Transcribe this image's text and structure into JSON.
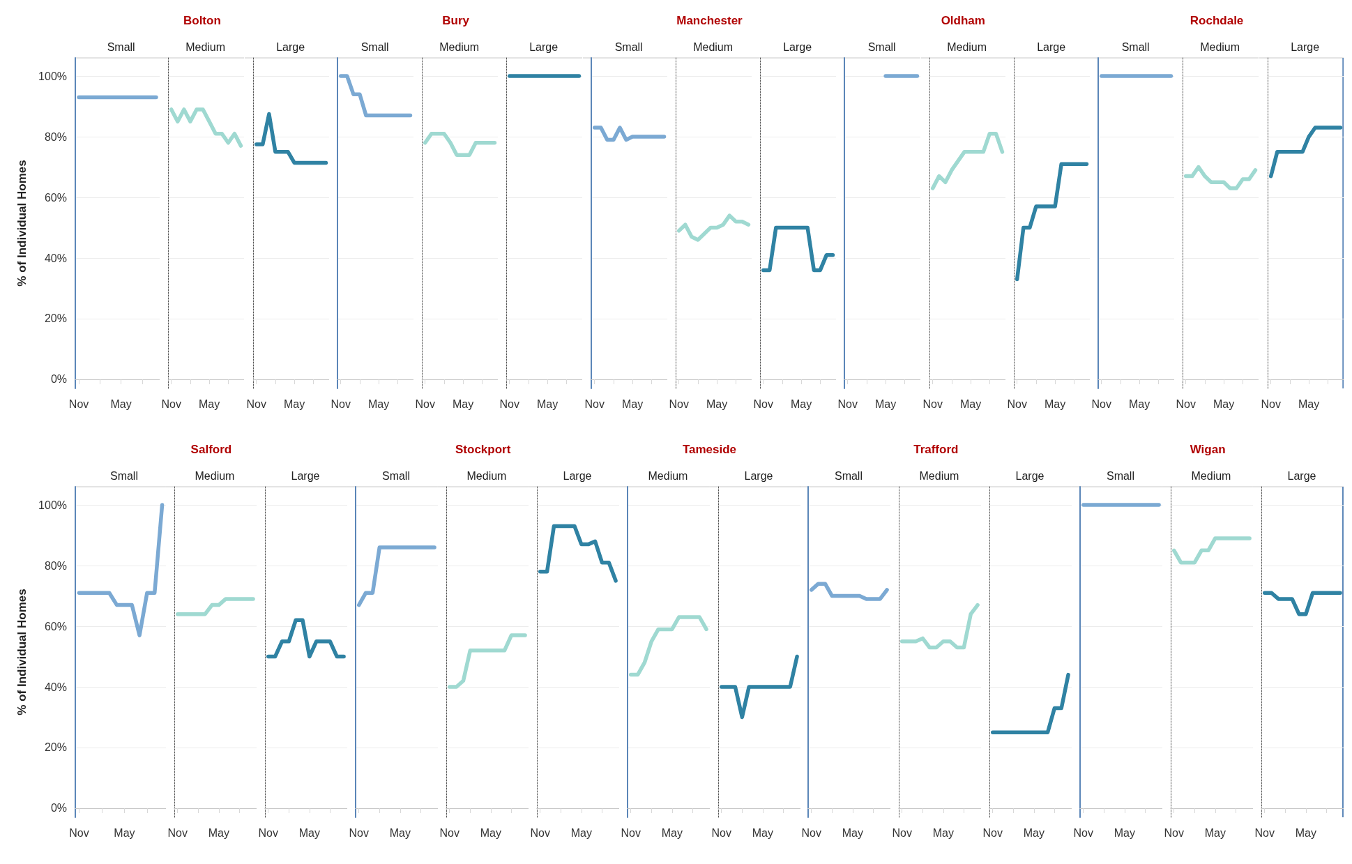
{
  "chart_data": [
    {
      "type": "line",
      "subtitle": "Small",
      "ylabel": "% of Individual Homes",
      "categories": [
        "Nov",
        null,
        null,
        null,
        null,
        null,
        "May",
        null,
        null,
        null,
        null,
        null
      ],
      "ylim": [
        -3,
        106
      ],
      "yticks": [
        {
          "value": 0,
          "label": "0%"
        },
        {
          "value": 20,
          "label": "20%"
        },
        {
          "value": 40,
          "label": "40%"
        },
        {
          "value": 60,
          "label": "60%"
        },
        {
          "value": 80,
          "label": "80%"
        },
        {
          "value": 100,
          "label": "100%"
        }
      ],
      "grid": "y",
      "series": [
        {
          "color": "#7ba9d3",
          "values": [
            93,
            93,
            93,
            93,
            93,
            93,
            93,
            93,
            93,
            93,
            93,
            93
          ]
        }
      ]
    },
    {
      "type": "line",
      "title": "Bolton",
      "subtitle": "Medium",
      "categories": [
        "Nov",
        null,
        null,
        null,
        null,
        null,
        "May",
        null,
        null,
        null,
        null,
        null
      ],
      "ylim": [
        -3,
        106
      ],
      "yticks": [
        0,
        20,
        40,
        60,
        80,
        100
      ],
      "tick_labels": "x",
      "grid": "y",
      "series": [
        {
          "color": "#9fd9d1",
          "values": [
            89,
            85,
            89,
            85,
            89,
            89,
            85,
            81,
            81,
            78,
            81,
            77
          ]
        }
      ]
    },
    {
      "type": "line",
      "subtitle": "Large",
      "categories": [
        "Nov",
        null,
        null,
        null,
        null,
        null,
        "May",
        null,
        null,
        null,
        null,
        null
      ],
      "ylim": [
        -3,
        106
      ],
      "yticks": [
        0,
        20,
        40,
        60,
        80,
        100
      ],
      "tick_labels": "x",
      "grid": "y",
      "series": [
        {
          "color": "#2f82a3",
          "values": [
            77.5,
            77.5,
            87.5,
            75,
            75,
            75,
            71.4,
            71.4,
            71.4,
            71.4,
            71.4,
            71.4
          ]
        }
      ]
    },
    {
      "type": "line",
      "subtitle": "Small",
      "categories": [
        "Nov",
        null,
        null,
        null,
        null,
        null,
        "May",
        null,
        null,
        null,
        null,
        null
      ],
      "ylim": [
        -3,
        106
      ],
      "yticks": [
        0,
        20,
        40,
        60,
        80,
        100
      ],
      "tick_labels": "x",
      "grid": "y",
      "series": [
        {
          "color": "#7ba9d3",
          "values": [
            100,
            100,
            94,
            94,
            87,
            87,
            87,
            87,
            87,
            87,
            87,
            87
          ]
        }
      ]
    },
    {
      "type": "line",
      "title": "Bury",
      "subtitle": "Medium",
      "categories": [
        "Nov",
        null,
        null,
        null,
        null,
        null,
        "May",
        null,
        null,
        null,
        null,
        null
      ],
      "ylim": [
        -3,
        106
      ],
      "yticks": [
        0,
        20,
        40,
        60,
        80,
        100
      ],
      "tick_labels": "x",
      "grid": "y",
      "series": [
        {
          "color": "#9fd9d1",
          "values": [
            78,
            81,
            81,
            81,
            78,
            74,
            74,
            74,
            78,
            78,
            78,
            78
          ]
        }
      ]
    },
    {
      "type": "line",
      "subtitle": "Large",
      "categories": [
        "Nov",
        null,
        null,
        null,
        null,
        null,
        "May",
        null,
        null,
        null,
        null,
        null
      ],
      "ylim": [
        -3,
        106
      ],
      "yticks": [
        0,
        20,
        40,
        60,
        80,
        100
      ],
      "tick_labels": "x",
      "grid": "y",
      "series": [
        {
          "color": "#2f82a3",
          "values": [
            100,
            100,
            100,
            100,
            100,
            100,
            100,
            100,
            100,
            100,
            100,
            100
          ]
        }
      ]
    },
    {
      "type": "line",
      "subtitle": "Small",
      "categories": [
        "Nov",
        null,
        null,
        null,
        null,
        null,
        "May",
        null,
        null,
        null,
        null,
        null
      ],
      "ylim": [
        -3,
        106
      ],
      "yticks": [
        0,
        20,
        40,
        60,
        80,
        100
      ],
      "tick_labels": "x",
      "grid": "y",
      "series": [
        {
          "color": "#7ba9d3",
          "values": [
            83,
            83,
            79,
            79,
            83,
            79,
            80,
            80,
            80,
            80,
            80,
            80
          ]
        }
      ]
    },
    {
      "type": "line",
      "title": "Manchester",
      "subtitle": "Medium",
      "categories": [
        "Nov",
        null,
        null,
        null,
        null,
        null,
        "May",
        null,
        null,
        null,
        null,
        null
      ],
      "ylim": [
        -3,
        106
      ],
      "yticks": [
        0,
        20,
        40,
        60,
        80,
        100
      ],
      "tick_labels": "x",
      "grid": "y",
      "series": [
        {
          "color": "#9fd9d1",
          "values": [
            49,
            51,
            47,
            46,
            48,
            50,
            50,
            51,
            54,
            52,
            52,
            51
          ]
        }
      ]
    },
    {
      "type": "line",
      "subtitle": "Large",
      "categories": [
        "Nov",
        null,
        null,
        null,
        null,
        null,
        "May",
        null,
        null,
        null,
        null,
        null
      ],
      "ylim": [
        -3,
        106
      ],
      "yticks": [
        0,
        20,
        40,
        60,
        80,
        100
      ],
      "tick_labels": "x",
      "grid": "y",
      "series": [
        {
          "color": "#2f82a3",
          "values": [
            36,
            36,
            50,
            50,
            50,
            50,
            50,
            50,
            36,
            36,
            41,
            41
          ]
        }
      ]
    },
    {
      "type": "line",
      "subtitle": "Small",
      "categories": [
        "Nov",
        null,
        null,
        null,
        null,
        null,
        "May",
        null,
        null,
        null,
        null,
        null
      ],
      "ylim": [
        -3,
        106
      ],
      "yticks": [
        0,
        20,
        40,
        60,
        80,
        100
      ],
      "tick_labels": "x",
      "grid": "y",
      "series": [
        {
          "color": "#7ba9d3",
          "values": [
            null,
            null,
            null,
            null,
            null,
            null,
            100,
            100,
            100,
            100,
            100,
            100
          ]
        }
      ]
    },
    {
      "type": "line",
      "title": "Oldham",
      "subtitle": "Medium",
      "categories": [
        "Nov",
        null,
        null,
        null,
        null,
        null,
        "May",
        null,
        null,
        null,
        null,
        null
      ],
      "ylim": [
        -3,
        106
      ],
      "yticks": [
        0,
        20,
        40,
        60,
        80,
        100
      ],
      "tick_labels": "x",
      "grid": "y",
      "series": [
        {
          "color": "#9fd9d1",
          "values": [
            63,
            67,
            65,
            69,
            72,
            75,
            75,
            75,
            75,
            81,
            81,
            75
          ]
        }
      ]
    },
    {
      "type": "line",
      "subtitle": "Large",
      "categories": [
        "Nov",
        null,
        null,
        null,
        null,
        null,
        "May",
        null,
        null,
        null,
        null,
        null
      ],
      "ylim": [
        -3,
        106
      ],
      "yticks": [
        0,
        20,
        40,
        60,
        80,
        100
      ],
      "tick_labels": "x",
      "grid": "y",
      "series": [
        {
          "color": "#2f82a3",
          "values": [
            33,
            50,
            50,
            57,
            57,
            57,
            57,
            71,
            71,
            71,
            71,
            71
          ]
        }
      ]
    },
    {
      "type": "line",
      "subtitle": "Small",
      "categories": [
        "Nov",
        null,
        null,
        null,
        null,
        null,
        "May",
        null,
        null,
        null,
        null,
        null
      ],
      "ylim": [
        -3,
        106
      ],
      "yticks": [
        0,
        20,
        40,
        60,
        80,
        100
      ],
      "tick_labels": "x",
      "grid": "y",
      "series": [
        {
          "color": "#7ba9d3",
          "values": [
            100,
            100,
            100,
            100,
            100,
            100,
            100,
            100,
            100,
            100,
            100,
            100
          ]
        }
      ]
    },
    {
      "type": "line",
      "title": "Rochdale",
      "subtitle": "Medium",
      "categories": [
        "Nov",
        null,
        null,
        null,
        null,
        null,
        "May",
        null,
        null,
        null,
        null,
        null
      ],
      "ylim": [
        -3,
        106
      ],
      "yticks": [
        0,
        20,
        40,
        60,
        80,
        100
      ],
      "tick_labels": "x",
      "grid": "y",
      "series": [
        {
          "color": "#9fd9d1",
          "values": [
            67,
            67,
            70,
            67,
            65,
            65,
            65,
            63,
            63,
            66,
            66,
            69
          ]
        }
      ]
    },
    {
      "type": "line",
      "subtitle": "Large",
      "categories": [
        "Nov",
        null,
        null,
        null,
        null,
        null,
        "May",
        null,
        null,
        null,
        null,
        null
      ],
      "ylim": [
        -3,
        106
      ],
      "yticks": [
        0,
        20,
        40,
        60,
        80,
        100
      ],
      "tick_labels": "x",
      "grid": "y",
      "series": [
        {
          "color": "#2f82a3",
          "values": [
            67,
            75,
            75,
            75,
            75,
            75,
            80,
            83,
            83,
            83,
            83,
            83
          ]
        }
      ]
    },
    {
      "type": "line",
      "subtitle": "Small",
      "ylabel": "% of Individual Homes",
      "categories": [
        "Nov",
        null,
        null,
        null,
        null,
        null,
        "May",
        null,
        null,
        null,
        null,
        null
      ],
      "ylim": [
        -3,
        106
      ],
      "yticks": [
        {
          "value": 0,
          "label": "0%"
        },
        {
          "value": 20,
          "label": "20%"
        },
        {
          "value": 40,
          "label": "40%"
        },
        {
          "value": 60,
          "label": "60%"
        },
        {
          "value": 80,
          "label": "80%"
        },
        {
          "value": 100,
          "label": "100%"
        }
      ],
      "grid": "y",
      "series": [
        {
          "color": "#7ba9d3",
          "values": [
            71,
            71,
            71,
            71,
            71,
            67,
            67,
            67,
            57,
            71,
            71,
            100
          ]
        }
      ]
    },
    {
      "type": "line",
      "title": "Salford",
      "subtitle": "Medium",
      "categories": [
        "Nov",
        null,
        null,
        null,
        null,
        null,
        "May",
        null,
        null,
        null,
        null,
        null
      ],
      "ylim": [
        -3,
        106
      ],
      "yticks": [
        0,
        20,
        40,
        60,
        80,
        100
      ],
      "tick_labels": "x",
      "grid": "y",
      "series": [
        {
          "color": "#9fd9d1",
          "values": [
            64,
            64,
            64,
            64,
            64,
            67,
            67,
            69,
            69,
            69,
            69,
            69
          ]
        }
      ]
    },
    {
      "type": "line",
      "subtitle": "Large",
      "categories": [
        "Nov",
        null,
        null,
        null,
        null,
        null,
        "May",
        null,
        null,
        null,
        null,
        null
      ],
      "ylim": [
        -3,
        106
      ],
      "yticks": [
        0,
        20,
        40,
        60,
        80,
        100
      ],
      "tick_labels": "x",
      "grid": "y",
      "series": [
        {
          "color": "#2f82a3",
          "values": [
            50,
            50,
            55,
            55,
            62,
            62,
            50,
            55,
            55,
            55,
            50,
            50
          ]
        }
      ]
    },
    {
      "type": "line",
      "subtitle": "Small",
      "categories": [
        "Nov",
        null,
        null,
        null,
        null,
        null,
        "May",
        null,
        null,
        null,
        null,
        null
      ],
      "ylim": [
        -3,
        106
      ],
      "yticks": [
        0,
        20,
        40,
        60,
        80,
        100
      ],
      "tick_labels": "x",
      "grid": "y",
      "series": [
        {
          "color": "#7ba9d3",
          "values": [
            67,
            71,
            71,
            86,
            86,
            86,
            86,
            86,
            86,
            86,
            86,
            86
          ]
        }
      ]
    },
    {
      "type": "line",
      "title": "Stockport",
      "subtitle": "Medium",
      "categories": [
        "Nov",
        null,
        null,
        null,
        null,
        null,
        "May",
        null,
        null,
        null,
        null,
        null
      ],
      "ylim": [
        -3,
        106
      ],
      "yticks": [
        0,
        20,
        40,
        60,
        80,
        100
      ],
      "tick_labels": "x",
      "grid": "y",
      "series": [
        {
          "color": "#9fd9d1",
          "values": [
            40,
            40,
            42,
            52,
            52,
            52,
            52,
            52,
            52,
            57,
            57,
            57
          ]
        }
      ]
    },
    {
      "type": "line",
      "subtitle": "Large",
      "categories": [
        "Nov",
        null,
        null,
        null,
        null,
        null,
        "May",
        null,
        null,
        null,
        null,
        null
      ],
      "ylim": [
        -3,
        106
      ],
      "yticks": [
        0,
        20,
        40,
        60,
        80,
        100
      ],
      "tick_labels": "x",
      "grid": "y",
      "series": [
        {
          "color": "#2f82a3",
          "values": [
            78,
            78,
            93,
            93,
            93,
            93,
            87,
            87,
            88,
            81,
            81,
            75
          ]
        }
      ]
    },
    {
      "type": "line",
      "title": "Tameside",
      "subtitle": "Medium",
      "categories": [
        "Nov",
        null,
        null,
        null,
        null,
        null,
        "May",
        null,
        null,
        null,
        null,
        null
      ],
      "ylim": [
        -3,
        106
      ],
      "yticks": [
        0,
        20,
        40,
        60,
        80,
        100
      ],
      "tick_labels": "x",
      "grid": "y",
      "series": [
        {
          "color": "#9fd9d1",
          "values": [
            44,
            44,
            48,
            55,
            59,
            59,
            59,
            63,
            63,
            63,
            63,
            59
          ]
        }
      ]
    },
    {
      "type": "line",
      "subtitle": "Large",
      "categories": [
        "Nov",
        null,
        null,
        null,
        null,
        null,
        "May",
        null,
        null,
        null,
        null,
        null
      ],
      "ylim": [
        -3,
        106
      ],
      "yticks": [
        0,
        20,
        40,
        60,
        80,
        100
      ],
      "tick_labels": "x",
      "grid": "y",
      "series": [
        {
          "color": "#2f82a3",
          "values": [
            40,
            40,
            40,
            30,
            40,
            40,
            40,
            40,
            40,
            40,
            40,
            50
          ]
        }
      ]
    },
    {
      "type": "line",
      "subtitle": "Small",
      "categories": [
        "Nov",
        null,
        null,
        null,
        null,
        null,
        "May",
        null,
        null,
        null,
        null,
        null
      ],
      "ylim": [
        -3,
        106
      ],
      "yticks": [
        0,
        20,
        40,
        60,
        80,
        100
      ],
      "tick_labels": "x",
      "grid": "y",
      "series": [
        {
          "color": "#7ba9d3",
          "values": [
            72,
            74,
            74,
            70,
            70,
            70,
            70,
            70,
            69,
            69,
            69,
            72
          ]
        }
      ]
    },
    {
      "type": "line",
      "title": "Trafford",
      "subtitle": "Medium",
      "categories": [
        "Nov",
        null,
        null,
        null,
        null,
        null,
        "May",
        null,
        null,
        null,
        null,
        null
      ],
      "ylim": [
        -3,
        106
      ],
      "yticks": [
        0,
        20,
        40,
        60,
        80,
        100
      ],
      "tick_labels": "x",
      "grid": "y",
      "series": [
        {
          "color": "#9fd9d1",
          "values": [
            55,
            55,
            55,
            56,
            53,
            53,
            55,
            55,
            53,
            53,
            64,
            67
          ]
        }
      ]
    },
    {
      "type": "line",
      "subtitle": "Large",
      "categories": [
        "Nov",
        null,
        null,
        null,
        null,
        null,
        "May",
        null,
        null,
        null,
        null,
        null
      ],
      "ylim": [
        -3,
        106
      ],
      "yticks": [
        0,
        20,
        40,
        60,
        80,
        100
      ],
      "tick_labels": "x",
      "grid": "y",
      "series": [
        {
          "color": "#2f82a3",
          "values": [
            25,
            25,
            25,
            25,
            25,
            25,
            25,
            25,
            25,
            33,
            33,
            44
          ]
        }
      ]
    },
    {
      "type": "line",
      "subtitle": "Small",
      "categories": [
        "Nov",
        null,
        null,
        null,
        null,
        null,
        "May",
        null,
        null,
        null,
        null,
        null
      ],
      "ylim": [
        -3,
        106
      ],
      "yticks": [
        0,
        20,
        40,
        60,
        80,
        100
      ],
      "tick_labels": "x",
      "grid": "y",
      "series": [
        {
          "color": "#7ba9d3",
          "values": [
            100,
            100,
            100,
            100,
            100,
            100,
            100,
            100,
            100,
            100,
            100,
            100
          ]
        }
      ]
    },
    {
      "type": "line",
      "title": "Wigan",
      "subtitle": "Medium",
      "categories": [
        "Nov",
        null,
        null,
        null,
        null,
        null,
        "May",
        null,
        null,
        null,
        null,
        null
      ],
      "ylim": [
        -3,
        106
      ],
      "yticks": [
        0,
        20,
        40,
        60,
        80,
        100
      ],
      "tick_labels": "x",
      "grid": "y",
      "series": [
        {
          "color": "#9fd9d1",
          "values": [
            85,
            81,
            81,
            81,
            85,
            85,
            89,
            89,
            89,
            89,
            89,
            89
          ]
        }
      ]
    },
    {
      "type": "line",
      "subtitle": "Large",
      "categories": [
        "Nov",
        null,
        null,
        null,
        null,
        null,
        "May",
        null,
        null,
        null,
        null,
        null
      ],
      "ylim": [
        -3,
        106
      ],
      "yticks": [
        0,
        20,
        40,
        60,
        80,
        100
      ],
      "tick_labels": "x",
      "grid": "y",
      "series": [
        {
          "color": "#2f82a3",
          "values": [
            71,
            71,
            69,
            69,
            69,
            64,
            64,
            71,
            71,
            71,
            71,
            71
          ]
        }
      ]
    }
  ]
}
